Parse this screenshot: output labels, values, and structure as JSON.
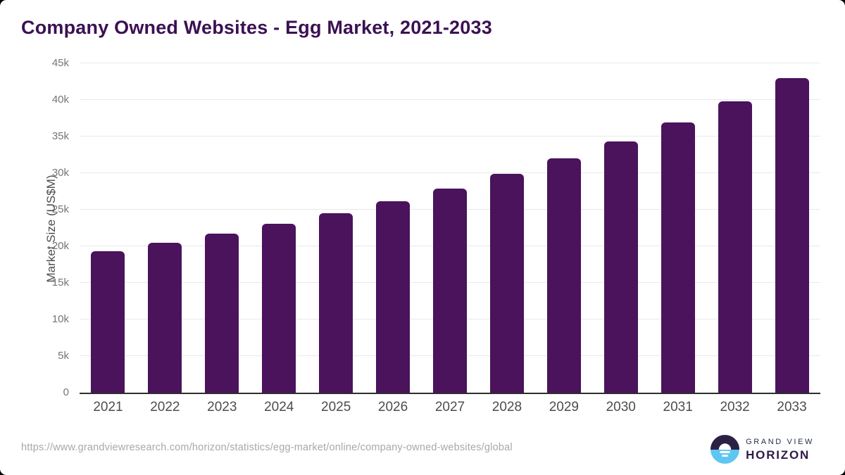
{
  "title": "Company Owned Websites - Egg Market, 2021-2033",
  "chart_data": {
    "type": "bar",
    "title": "Company Owned Websites - Egg Market, 2021-2033",
    "categories": [
      "2021",
      "2022",
      "2023",
      "2024",
      "2025",
      "2026",
      "2027",
      "2028",
      "2029",
      "2030",
      "2031",
      "2032",
      "2033"
    ],
    "values": [
      19300,
      20450,
      21700,
      23100,
      24550,
      26200,
      27900,
      29900,
      32000,
      34300,
      36900,
      39800,
      43000
    ],
    "xlabel": "",
    "ylabel": "Market Size (US$M)",
    "ylim": [
      0,
      45000
    ],
    "ytick_step": 5000,
    "ytick_labels": [
      "0",
      "5k",
      "10k",
      "15k",
      "20k",
      "25k",
      "30k",
      "35k",
      "40k",
      "45k"
    ],
    "grid": true,
    "legend": "none",
    "bar_color": "#4a135c"
  },
  "footer": {
    "source_url": "https://www.grandviewresearch.com/horizon/statistics/egg-market/online/company-owned-websites/global",
    "logo": {
      "icon": "sunrise-horizon-icon",
      "line1": "GRAND VIEW",
      "line2": "HORIZON",
      "icon_top_color": "#2b2145",
      "icon_bottom_color": "#5fc6f2"
    }
  },
  "colors": {
    "title": "#3c1053",
    "bar": "#4a135c",
    "gridline": "#e9e9e9",
    "axis_line": "#2e2e2e",
    "ytick_text": "#757575",
    "xtick_text": "#4d4d4d",
    "url_text": "#a8a8a8"
  }
}
